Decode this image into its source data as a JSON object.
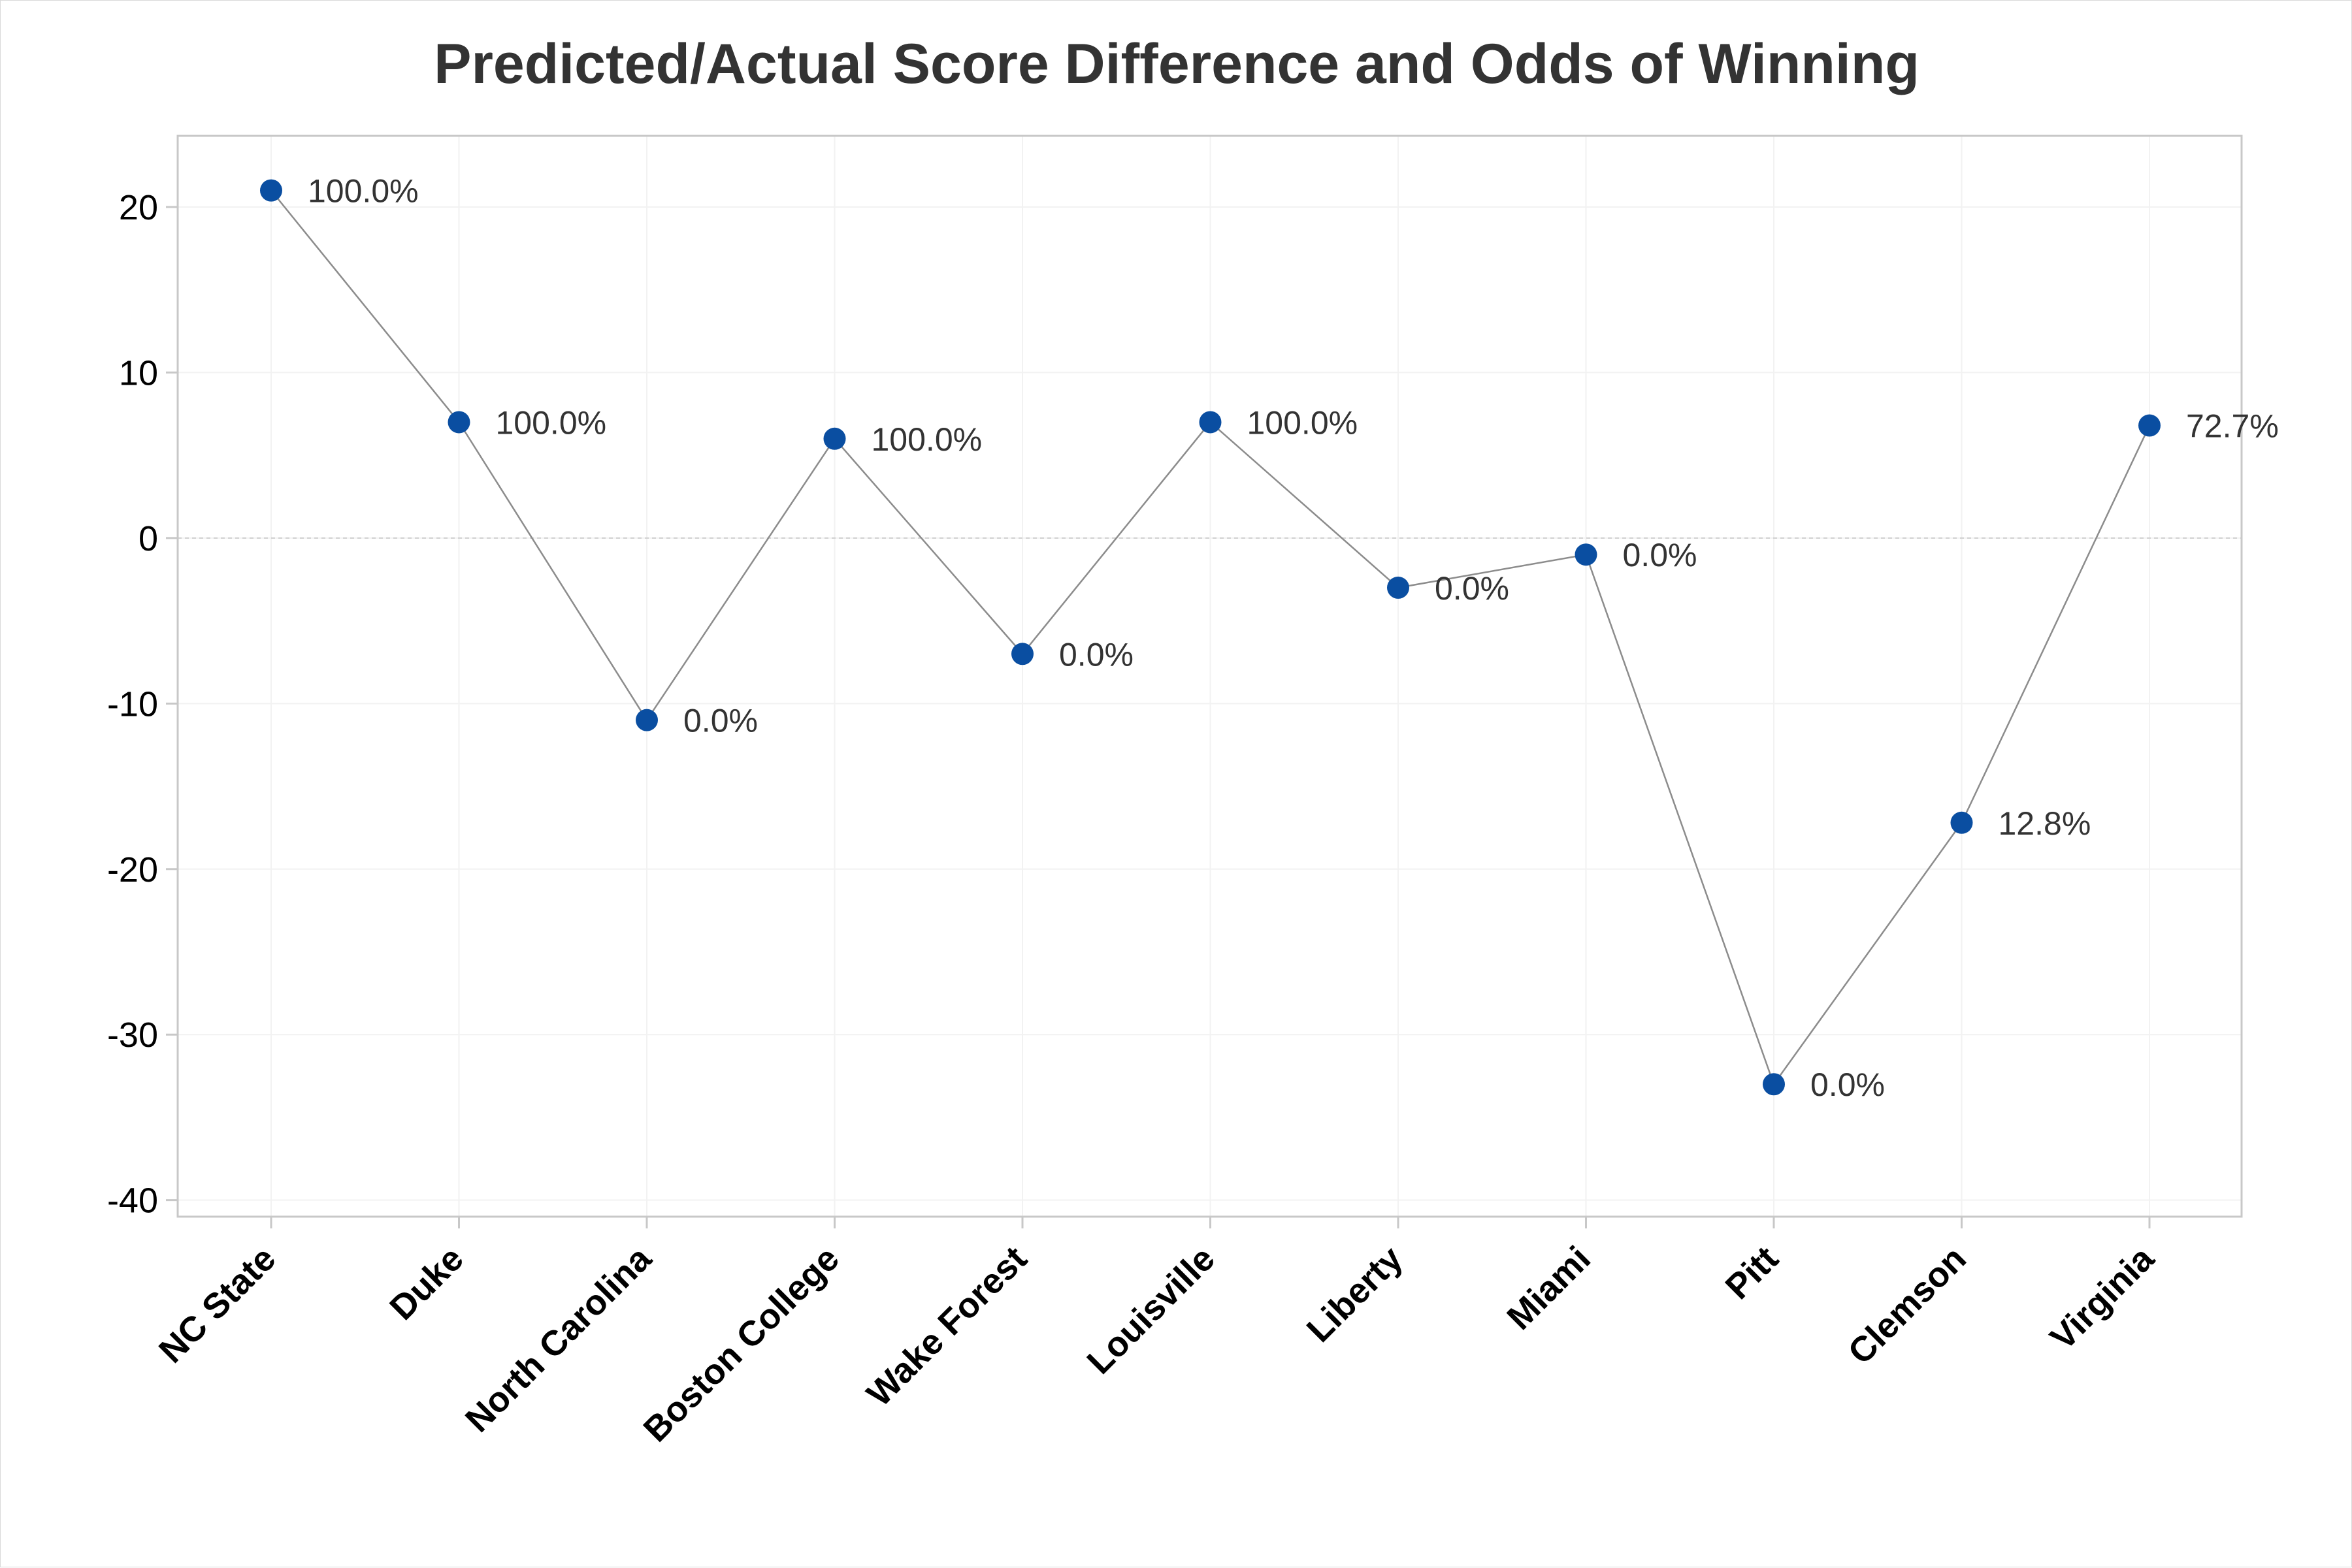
{
  "chart_data": {
    "type": "line",
    "title": "Predicted/Actual Score Difference and Odds of Winning",
    "xlabel": "",
    "ylabel": "",
    "categories": [
      "NC State",
      "Duke",
      "North Carolina",
      "Boston College",
      "Wake Forest",
      "Louisville",
      "Liberty",
      "Miami",
      "Pitt",
      "Clemson",
      "Virginia"
    ],
    "values": [
      21,
      7,
      -11,
      6,
      -7,
      7,
      -3,
      -1,
      -33,
      -17.2,
      6.8
    ],
    "point_labels": [
      "100.0%",
      "100.0%",
      "0.0%",
      "100.0%",
      "0.0%",
      "100.0%",
      "0.0%",
      "0.0%",
      "0.0%",
      "12.8%",
      "72.7%"
    ],
    "ylim": [
      -41,
      24.3
    ],
    "yticks": [
      -40,
      -30,
      -20,
      -10,
      0,
      10,
      20
    ],
    "reference_line": 0,
    "grid": true,
    "legend": "none",
    "colors": {
      "marker": "#0a4ea1",
      "line": "#8c8c8c",
      "axis": "#c8c8c8",
      "grid": "#f2f2f2",
      "reference": "#cfcfcf"
    }
  }
}
